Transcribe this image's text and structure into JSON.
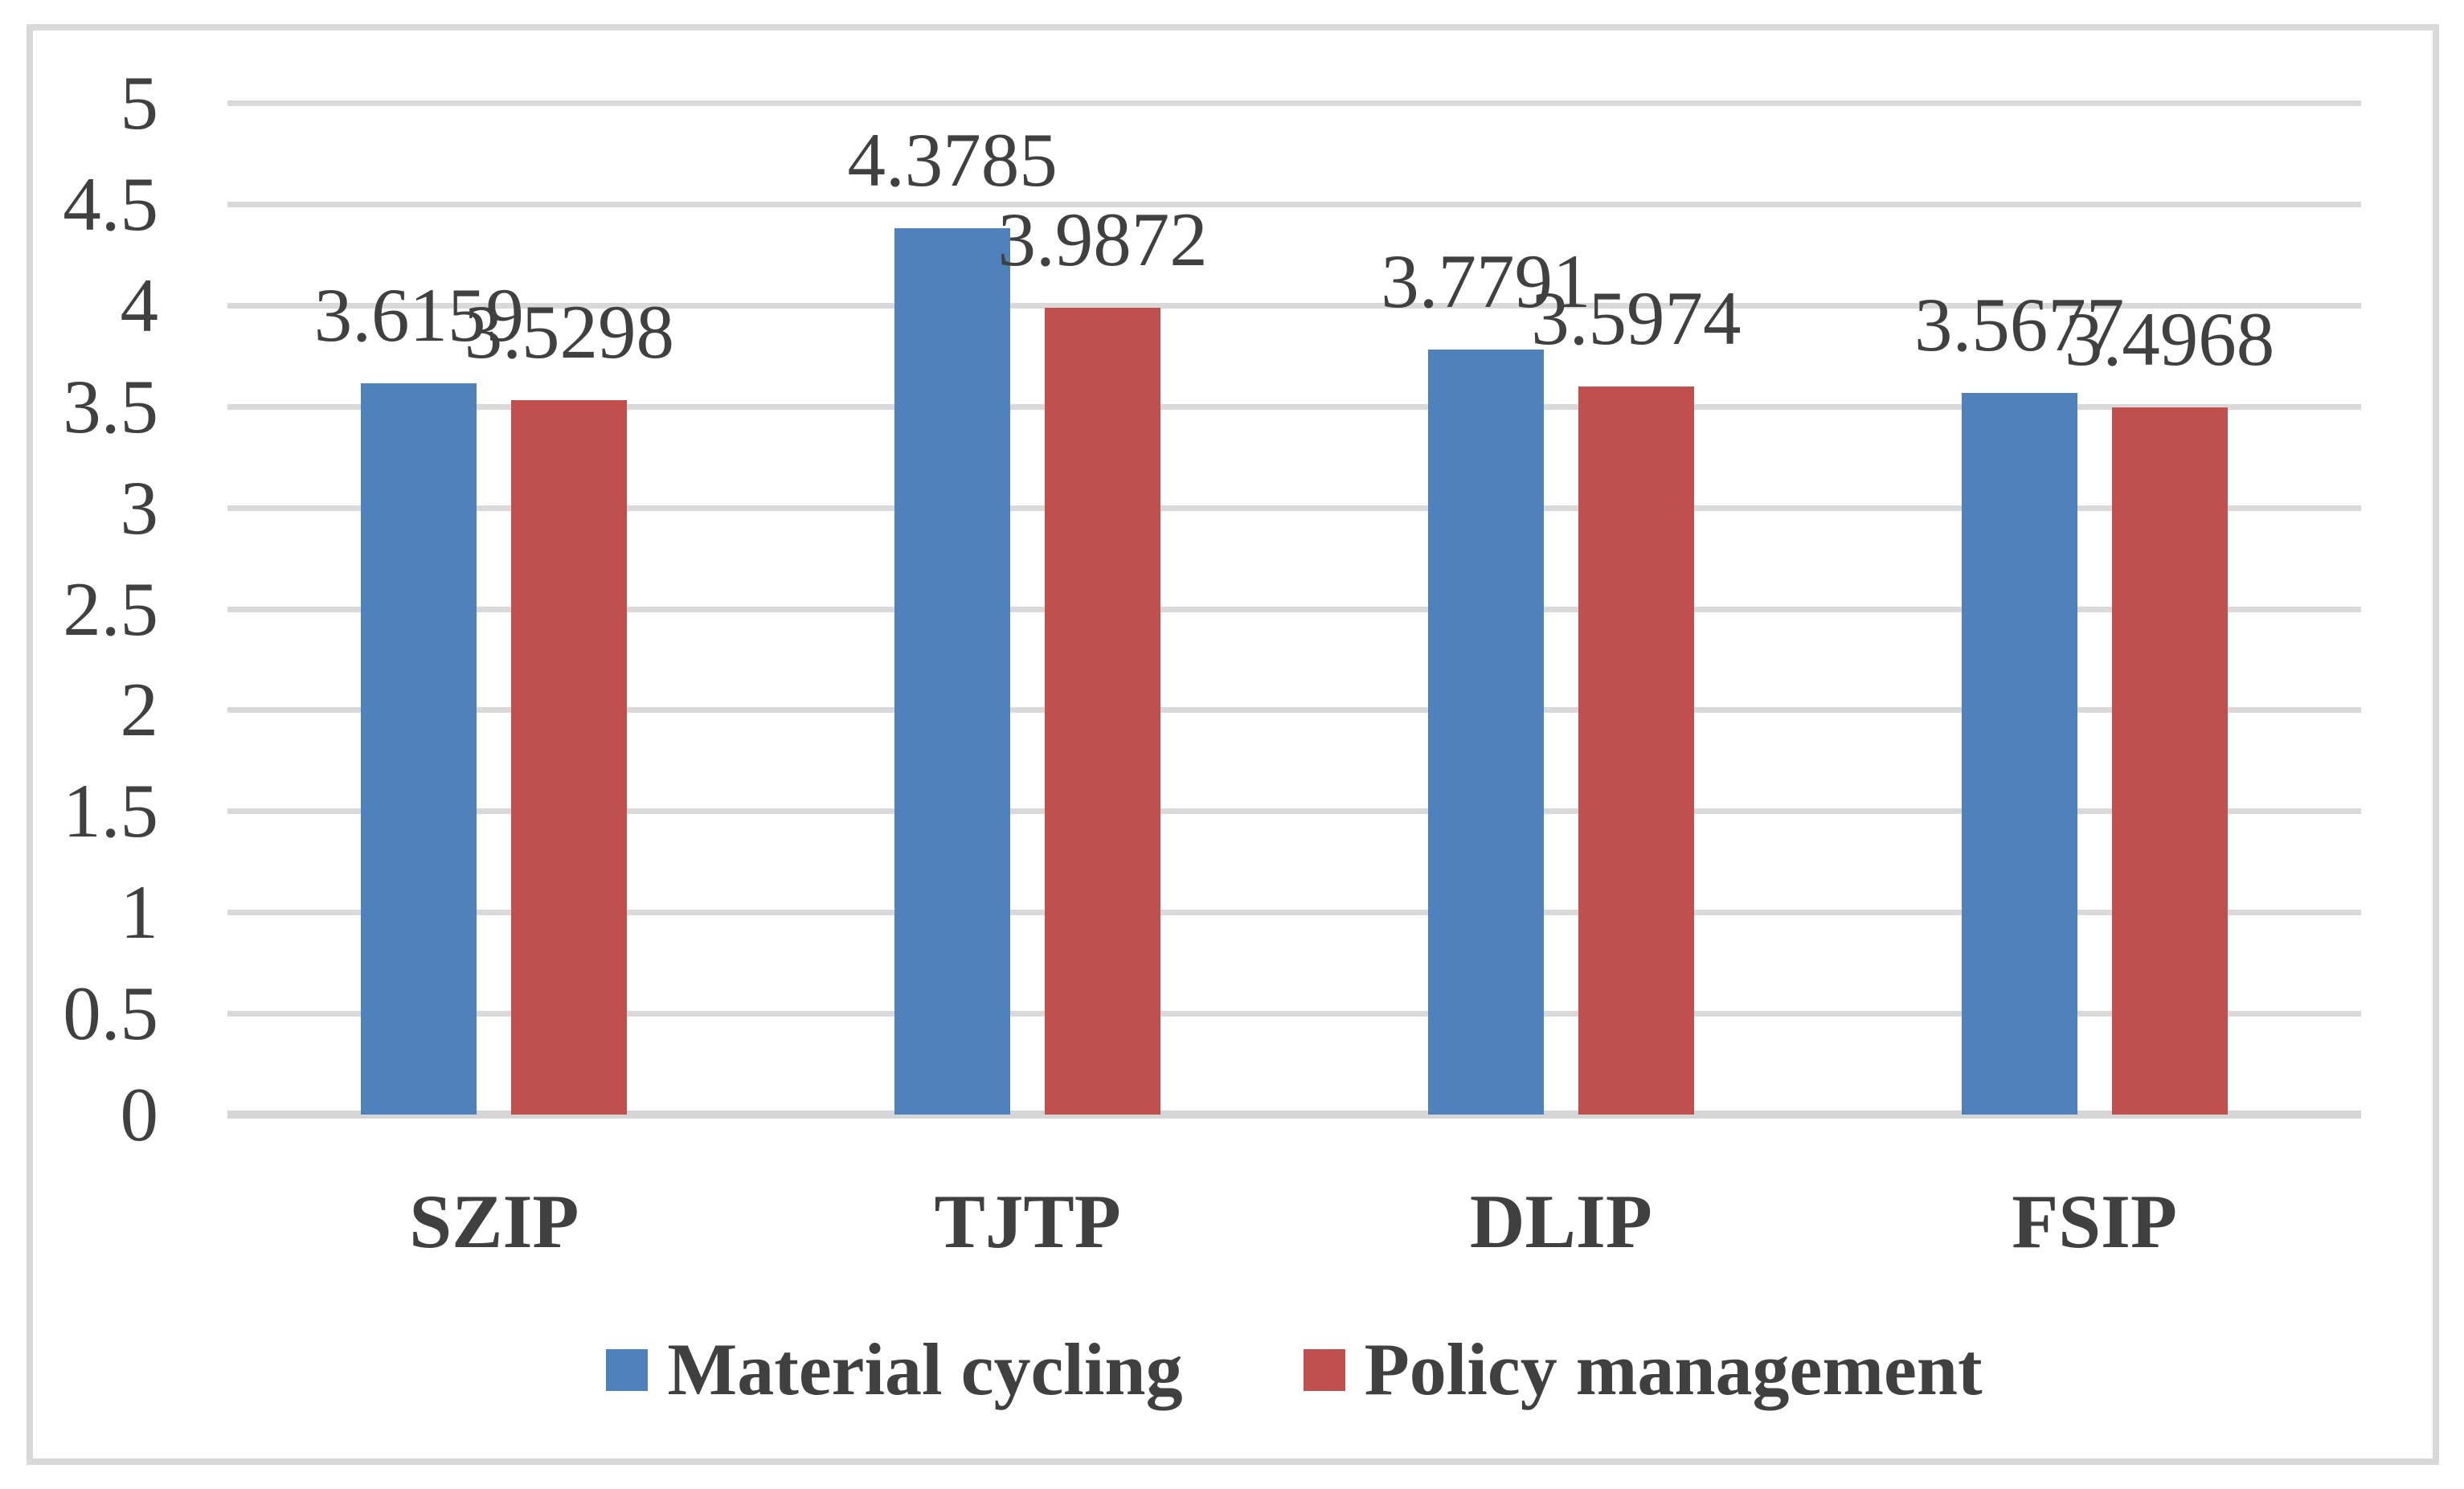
{
  "chart_data": {
    "type": "bar",
    "categories": [
      "SZIP",
      "TJTP",
      "DLIP",
      "FSIP"
    ],
    "series": [
      {
        "name": "Material cycling",
        "color": "#4F81BD",
        "values": [
          3.6159,
          4.3785,
          3.7791,
          3.5677
        ],
        "labels": [
          "3.6159",
          "4.3785",
          "3.7791",
          "3.5677"
        ]
      },
      {
        "name": "Policy management",
        "color": "#C0504D",
        "values": [
          3.5298,
          3.9872,
          3.5974,
          3.4968
        ],
        "labels": [
          "3.5298",
          "3.9872",
          "3.5974",
          "3.4968"
        ]
      }
    ],
    "title": "",
    "xlabel": "",
    "ylabel": "",
    "ylim": [
      0,
      5
    ],
    "ytick_step": 0.5,
    "ytick_labels": [
      "5",
      "4.5",
      "4",
      "3.5",
      "3",
      "2.5",
      "2",
      "1.5",
      "1",
      "0.5",
      "0"
    ],
    "grid": true,
    "gridline_color": "#D9D9D9",
    "frame_border_color": "#D9D9D9",
    "text_color": "#404040",
    "legend_position": "bottom"
  },
  "legend": {
    "items": [
      {
        "label": "Material cycling",
        "color": "#4F81BD"
      },
      {
        "label": "Policy management",
        "color": "#C0504D"
      }
    ]
  }
}
